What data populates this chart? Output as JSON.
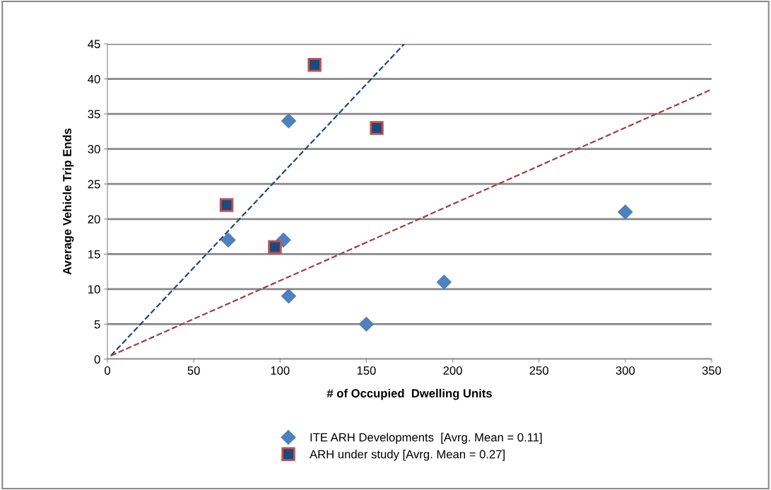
{
  "chart_data": {
    "type": "scatter",
    "xlabel": "# of Occupied  Dwelling Units",
    "ylabel": "Average Vehicle Trip Ends",
    "xlim": [
      0,
      350
    ],
    "xticks": [
      0,
      50,
      100,
      150,
      200,
      250,
      300,
      350
    ],
    "ylim": [
      0,
      45
    ],
    "yticks": [
      0,
      5,
      10,
      15,
      20,
      25,
      30,
      35,
      40,
      45
    ],
    "grid": "y",
    "legend": "bottom",
    "series": [
      {
        "name": "ITE ARH Developments  [Avrg. Mean = 0.11]",
        "color": "#4f81bd",
        "marker": "diamond",
        "x": [
          70,
          105,
          102,
          105,
          150,
          195,
          300
        ],
        "values": [
          17,
          34,
          17,
          9,
          5,
          11,
          21
        ]
      },
      {
        "name": "ARH under study [Avrg. Mean = 0.27]",
        "color": "#1f497d",
        "marker": "square",
        "x": [
          69,
          120,
          156,
          97
        ],
        "values": [
          22,
          42,
          33,
          16
        ]
      },
      {
        "type": "line",
        "color": "#1f497d",
        "line_style": "dashed",
        "x": [
          2,
          172
        ],
        "values": [
          0.5,
          45
        ]
      },
      {
        "type": "line",
        "color": "#a0403a",
        "line_style": "dashed",
        "x": [
          2,
          350
        ],
        "values": [
          0.5,
          38.5
        ]
      }
    ]
  }
}
